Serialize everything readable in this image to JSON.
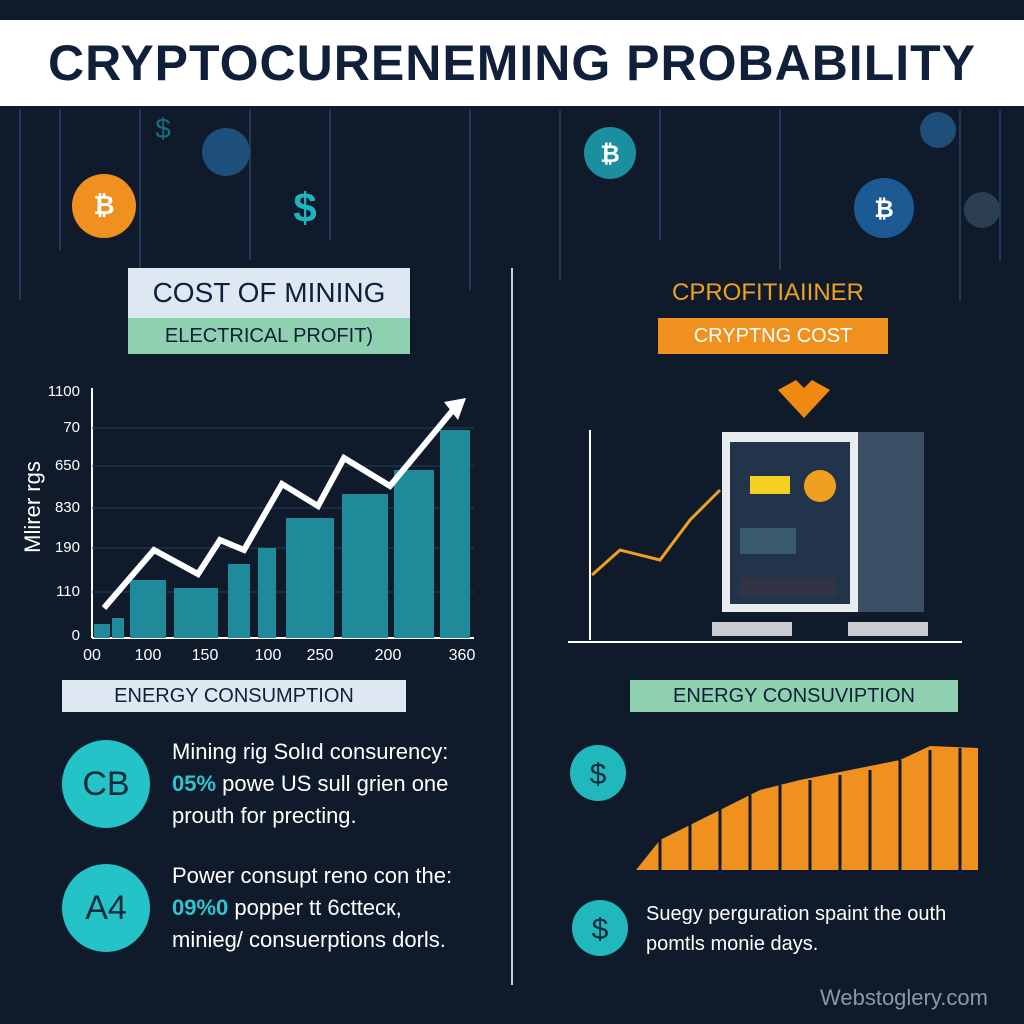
{
  "header": {
    "title": "CRYPTOCURENEMING PROBABILITY"
  },
  "left": {
    "title": "COST OF MINING",
    "subtitle": "ELECTRICAL PROFIT)",
    "chart": {
      "y_label": "Mlirer rgs",
      "yticks": [
        "1100",
        "70",
        "650",
        "830",
        "190",
        "110",
        "0"
      ],
      "xticks": [
        "00",
        "100",
        "150",
        "100",
        "250",
        "200",
        "360"
      ]
    },
    "section": "ENERGY CONSUMPTION",
    "items": [
      {
        "badge": "CB",
        "line1": "Mining rig Solıd consurency:",
        "highlight": "05%",
        "line2": " powe US sull grien one",
        "line3": "prouth for precting."
      },
      {
        "badge": "A4",
        "line1": "Power consupt reno con the:",
        "highlight": "09%0",
        "line2": " popper tt 6cttecк,",
        "line3": "minieg/ consuerptions dorls."
      }
    ]
  },
  "right": {
    "title": "CPROFITIAIINER",
    "subtitle": "CRYPTNG COST",
    "section": "ENERGY CONSUVIPTION",
    "note1": "Suegy perguration spaint the outh",
    "note2": "pomtls monie days."
  },
  "footer": "Webstoglery.com"
}
